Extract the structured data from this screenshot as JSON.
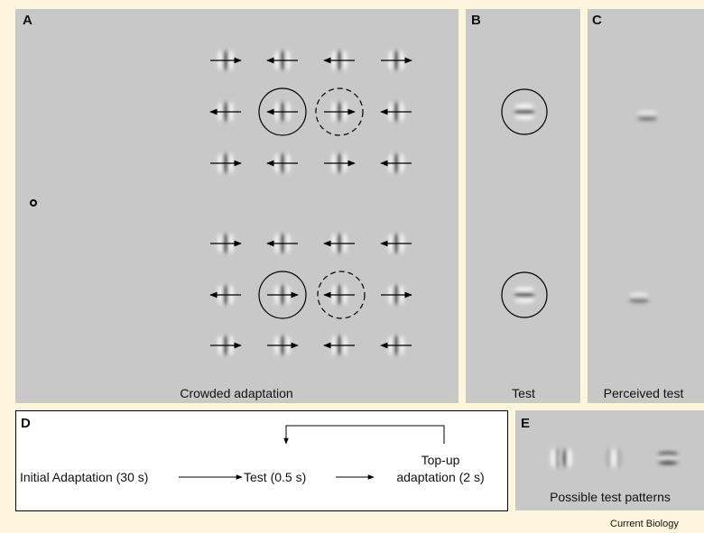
{
  "panels": {
    "a": {
      "label": "A",
      "caption": "Crowded adaptation"
    },
    "b": {
      "label": "B",
      "caption": "Test"
    },
    "c": {
      "label": "C",
      "caption": "Perceived test"
    },
    "d": {
      "label": "D",
      "steps": [
        "Initial Adaptation (30 s)",
        "Test (0.5 s)",
        "Top-up",
        "adaptation (2 s)"
      ]
    },
    "e": {
      "label": "E",
      "caption": "Possible test patterns"
    }
  },
  "footer": {
    "journal": "Current Biology"
  }
}
